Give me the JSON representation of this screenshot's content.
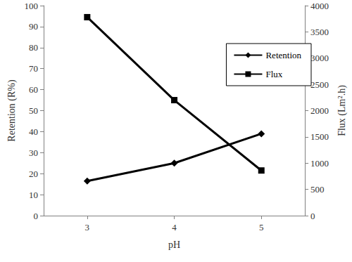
{
  "chart_data": {
    "type": "line",
    "x_label": "pH",
    "y_label": "Retention (R%)",
    "y2_label": "Flux (Lm².h)",
    "categories": [
      "3",
      "4",
      "5"
    ],
    "series": [
      {
        "name": "Retention",
        "color": "#000000",
        "marker": "diamond",
        "line_style": "solid",
        "values": [
          16.5,
          25,
          39
        ]
      },
      {
        "name": "Flux",
        "color": "#000000",
        "marker": "square",
        "line_style": "solid",
        "axis": "y2",
        "values": [
          3780,
          2200,
          860
        ]
      }
    ],
    "ylim": [
      0,
      100
    ],
    "yticks": [
      0,
      10,
      20,
      30,
      40,
      50,
      60,
      70,
      80,
      90,
      100
    ],
    "y2lim": [
      0,
      4000
    ],
    "y2ticks": [
      0,
      500,
      1000,
      1500,
      2000,
      2500,
      3000,
      3500,
      4000
    ],
    "grid": false,
    "legend": "upper right"
  }
}
